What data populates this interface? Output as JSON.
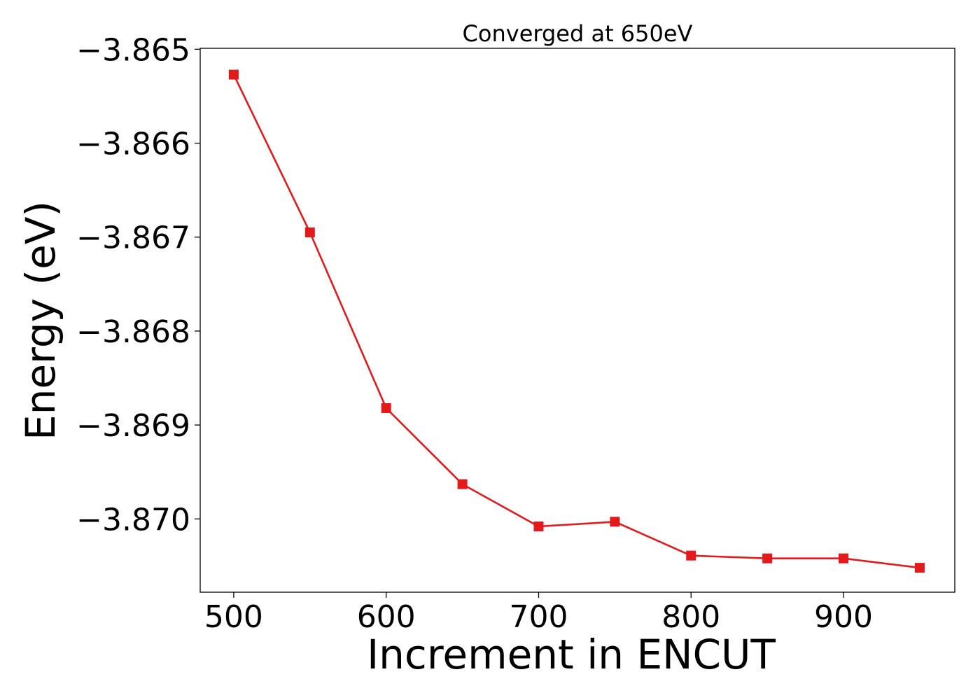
{
  "chart_data": {
    "type": "line",
    "title": "Converged at 650eV",
    "xlabel": "Increment in ENCUT",
    "ylabel": "Energy (eV)",
    "x": [
      500,
      550,
      600,
      650,
      700,
      750,
      800,
      850,
      900,
      950
    ],
    "series": [
      {
        "values": [
          -3.86527,
          -3.86695,
          -3.86882,
          -3.86963,
          -3.87008,
          -3.87003,
          -3.87039,
          -3.87042,
          -3.87042,
          -3.87052
        ],
        "color": "#e31a1c",
        "marker": "square"
      }
    ],
    "xlim": [
      478,
      973
    ],
    "ylim": [
      -3.87078,
      -3.86499
    ],
    "xticks": [
      500,
      600,
      700,
      800,
      900
    ],
    "xtick_labels": [
      "500",
      "600",
      "700",
      "800",
      "900"
    ],
    "yticks": [
      -3.865,
      -3.866,
      -3.867,
      -3.868,
      -3.869,
      -3.87
    ],
    "ytick_labels": [
      "−3.865",
      "−3.866",
      "−3.867",
      "−3.868",
      "−3.869",
      "−3.870"
    ],
    "grid": false,
    "legend": "none"
  }
}
